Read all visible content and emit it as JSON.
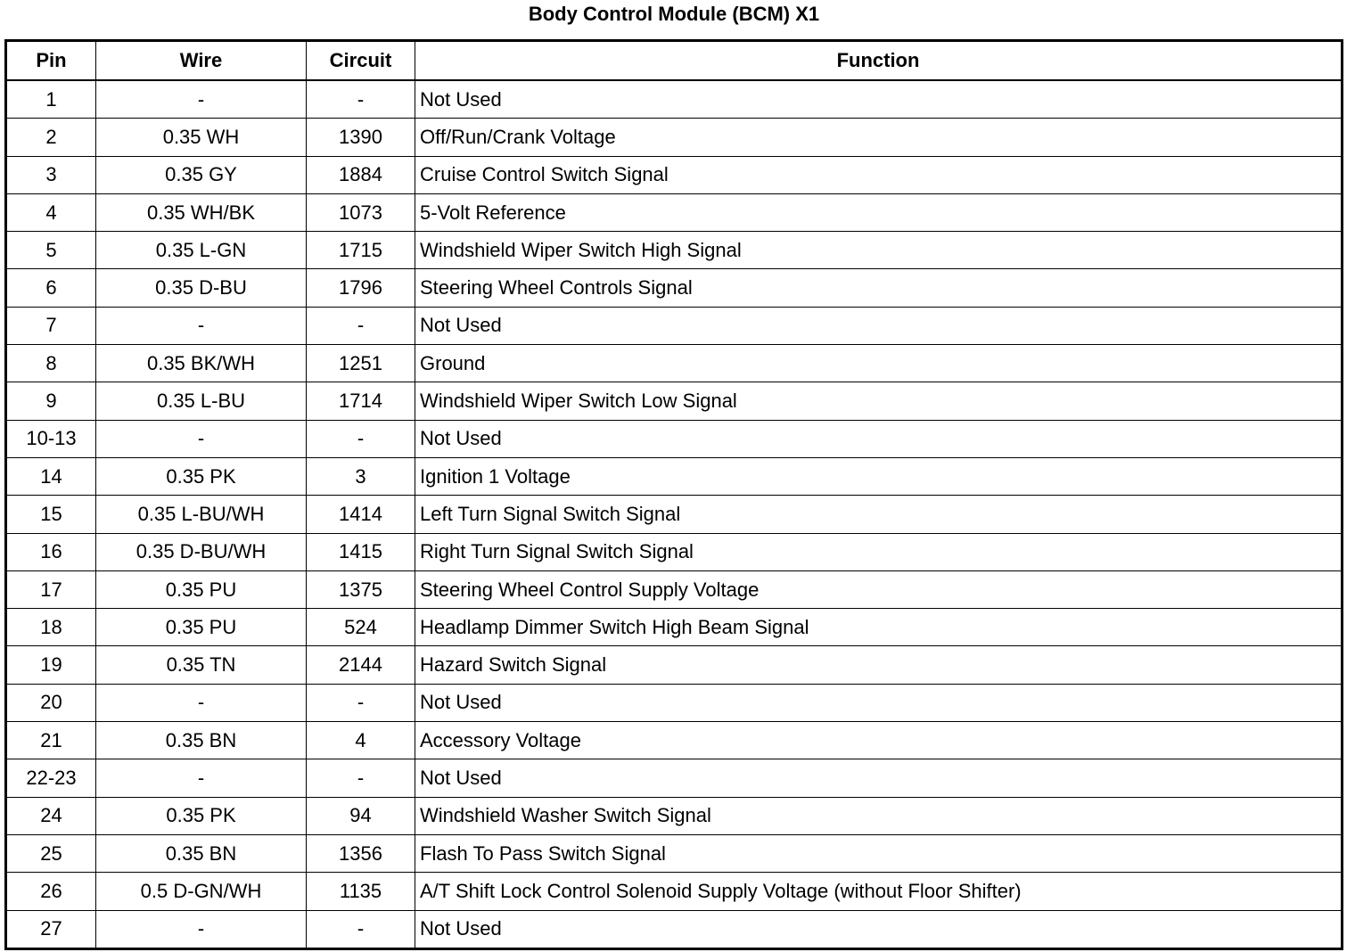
{
  "title": "Body Control Module (BCM) X1",
  "headers": [
    "Pin",
    "Wire",
    "Circuit",
    "Function"
  ],
  "rows": [
    [
      "1",
      "-",
      "-",
      "Not Used"
    ],
    [
      "2",
      "0.35 WH",
      "1390",
      "Off/Run/Crank Voltage"
    ],
    [
      "3",
      "0.35 GY",
      "1884",
      "Cruise Control Switch Signal"
    ],
    [
      "4",
      "0.35 WH/BK",
      "1073",
      "5-Volt Reference"
    ],
    [
      "5",
      "0.35 L-GN",
      "1715",
      "Windshield Wiper Switch High Signal"
    ],
    [
      "6",
      "0.35 D-BU",
      "1796",
      "Steering Wheel Controls Signal"
    ],
    [
      "7",
      "-",
      "-",
      "Not Used"
    ],
    [
      "8",
      "0.35 BK/WH",
      "1251",
      "Ground"
    ],
    [
      "9",
      "0.35 L-BU",
      "1714",
      "Windshield Wiper Switch Low Signal"
    ],
    [
      "10-13",
      "-",
      "-",
      "Not Used"
    ],
    [
      "14",
      "0.35 PK",
      "3",
      "Ignition 1 Voltage"
    ],
    [
      "15",
      "0.35 L-BU/WH",
      "1414",
      "Left Turn Signal Switch Signal"
    ],
    [
      "16",
      "0.35 D-BU/WH",
      "1415",
      "Right Turn Signal Switch Signal"
    ],
    [
      "17",
      "0.35 PU",
      "1375",
      "Steering Wheel Control Supply Voltage"
    ],
    [
      "18",
      "0.35 PU",
      "524",
      "Headlamp Dimmer Switch High Beam Signal"
    ],
    [
      "19",
      "0.35 TN",
      "2144",
      "Hazard Switch Signal"
    ],
    [
      "20",
      "-",
      "-",
      "Not Used"
    ],
    [
      "21",
      "0.35 BN",
      "4",
      "Accessory Voltage"
    ],
    [
      "22-23",
      "-",
      "-",
      "Not Used"
    ],
    [
      "24",
      "0.35 PK",
      "94",
      "Windshield Washer Switch Signal"
    ],
    [
      "25",
      "0.35 BN",
      "1356",
      "Flash To Pass Switch Signal"
    ],
    [
      "26",
      "0.5 D-GN/WH",
      "1135",
      "A/T Shift Lock Control Solenoid Supply Voltage (without Floor Shifter)"
    ],
    [
      "27",
      "-",
      "-",
      "Not Used"
    ]
  ]
}
